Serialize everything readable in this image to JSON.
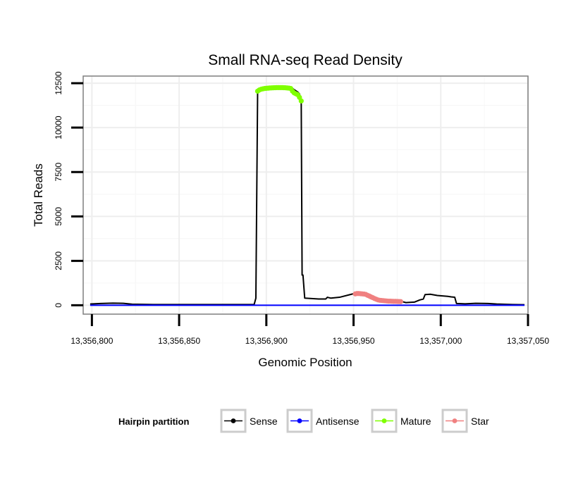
{
  "chart_data": {
    "type": "line",
    "title": "Small RNA-seq Read Density",
    "xlabel": "Genomic Position",
    "ylabel": "Total Reads",
    "xlim": [
      13356795,
      13357050
    ],
    "ylim": [
      -500,
      12900
    ],
    "x_ticks": [
      13356800,
      13356850,
      13356900,
      13356950,
      13357000,
      13357050
    ],
    "x_tick_labels": [
      "13,356,800",
      "13,356,850",
      "13,356,900",
      "13,356,950",
      "13,357,000",
      "13,357,050"
    ],
    "y_ticks": [
      0,
      2500,
      5000,
      7500,
      10000,
      12500
    ],
    "y_tick_labels": [
      "0",
      "2500",
      "5000",
      "7500",
      "10000",
      "12500"
    ],
    "grid": true,
    "legend": {
      "title": "Hairpin partition",
      "position": "bottom",
      "entries": [
        "Sense",
        "Antisense",
        "Mature",
        "Star"
      ]
    },
    "series": [
      {
        "name": "Sense",
        "color": "#000000",
        "marker": false,
        "points": [
          [
            13356799,
            70
          ],
          [
            13356805,
            100
          ],
          [
            13356812,
            120
          ],
          [
            13356818,
            110
          ],
          [
            13356823,
            60
          ],
          [
            13356835,
            40
          ],
          [
            13356860,
            40
          ],
          [
            13356885,
            40
          ],
          [
            13356893,
            40
          ],
          [
            13356894,
            400
          ],
          [
            13356895,
            12000
          ],
          [
            13356897,
            12150
          ],
          [
            13356903,
            12220
          ],
          [
            13356910,
            12240
          ],
          [
            13356915,
            12200
          ],
          [
            13356918,
            12000
          ],
          [
            13356919,
            11900
          ],
          [
            13356920,
            11500
          ],
          [
            13356920.5,
            1700
          ],
          [
            13356921,
            1700
          ],
          [
            13356922,
            400
          ],
          [
            13356930,
            350
          ],
          [
            13356934,
            350
          ],
          [
            13356935,
            450
          ],
          [
            13356937,
            400
          ],
          [
            13356942,
            450
          ],
          [
            13356948,
            600
          ],
          [
            13356950,
            650
          ],
          [
            13356953,
            650
          ],
          [
            13356957,
            620
          ],
          [
            13356960,
            450
          ],
          [
            13356963,
            350
          ],
          [
            13356968,
            250
          ],
          [
            13356975,
            220
          ],
          [
            13356978,
            200
          ],
          [
            13356980,
            150
          ],
          [
            13356985,
            180
          ],
          [
            13356988,
            300
          ],
          [
            13356990,
            350
          ],
          [
            13356991,
            600
          ],
          [
            13356994,
            620
          ],
          [
            13356998,
            550
          ],
          [
            13357004,
            500
          ],
          [
            13357006,
            470
          ],
          [
            13357008,
            450
          ],
          [
            13357009,
            100
          ],
          [
            13357014,
            80
          ],
          [
            13357020,
            110
          ],
          [
            13357027,
            100
          ],
          [
            13357032,
            70
          ],
          [
            13357041,
            40
          ],
          [
            13357048,
            30
          ]
        ]
      },
      {
        "name": "Antisense",
        "color": "#0000ff",
        "marker": false,
        "points": [
          [
            13356799,
            0
          ],
          [
            13357048,
            0
          ]
        ]
      },
      {
        "name": "Mature",
        "color": "#7fff00",
        "marker": true,
        "points": [
          [
            13356895,
            12050
          ],
          [
            13356896,
            12120
          ],
          [
            13356897,
            12160
          ],
          [
            13356898,
            12180
          ],
          [
            13356899,
            12200
          ],
          [
            13356900,
            12210
          ],
          [
            13356901,
            12220
          ],
          [
            13356902,
            12230
          ],
          [
            13356903,
            12235
          ],
          [
            13356904,
            12240
          ],
          [
            13356905,
            12245
          ],
          [
            13356906,
            12250
          ],
          [
            13356907,
            12250
          ],
          [
            13356908,
            12250
          ],
          [
            13356909,
            12250
          ],
          [
            13356910,
            12245
          ],
          [
            13356911,
            12240
          ],
          [
            13356912,
            12230
          ],
          [
            13356913,
            12220
          ],
          [
            13356914,
            12200
          ],
          [
            13356915,
            12050
          ],
          [
            13356916,
            11950
          ],
          [
            13356917,
            11900
          ],
          [
            13356918,
            11850
          ],
          [
            13356919,
            11700
          ],
          [
            13356920,
            11500
          ]
        ]
      },
      {
        "name": "Star",
        "color": "#f08080",
        "marker": true,
        "points": [
          [
            13356951,
            640
          ],
          [
            13356952,
            660
          ],
          [
            13356953,
            660
          ],
          [
            13356954,
            650
          ],
          [
            13356955,
            640
          ],
          [
            13356956,
            630
          ],
          [
            13356957,
            610
          ],
          [
            13356958,
            560
          ],
          [
            13356959,
            520
          ],
          [
            13356960,
            470
          ],
          [
            13356961,
            430
          ],
          [
            13356962,
            380
          ],
          [
            13356963,
            340
          ],
          [
            13356964,
            300
          ],
          [
            13356965,
            280
          ],
          [
            13356966,
            270
          ],
          [
            13356967,
            260
          ],
          [
            13356968,
            250
          ],
          [
            13356969,
            240
          ],
          [
            13356970,
            230
          ],
          [
            13356971,
            230
          ],
          [
            13356972,
            225
          ],
          [
            13356973,
            220
          ],
          [
            13356974,
            220
          ],
          [
            13356975,
            215
          ],
          [
            13356976,
            210
          ],
          [
            13356977,
            205
          ]
        ]
      }
    ]
  }
}
